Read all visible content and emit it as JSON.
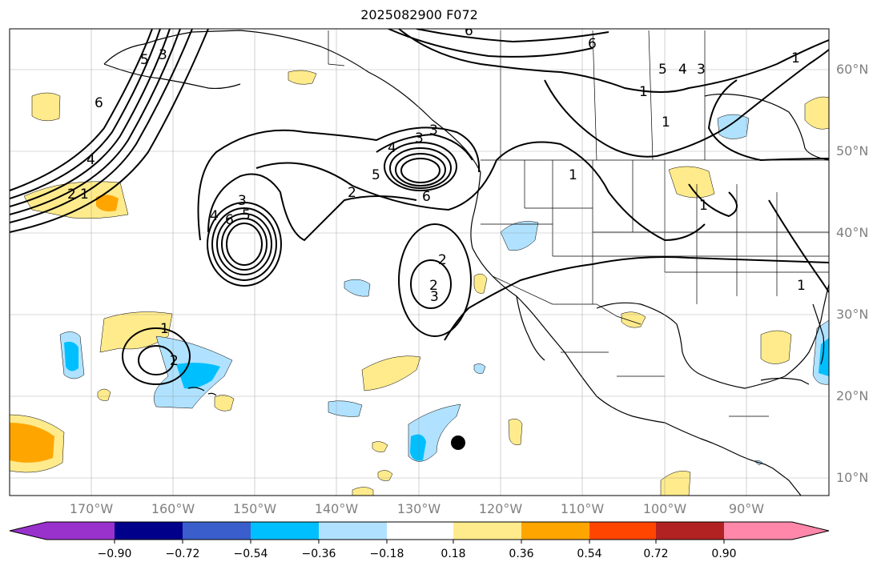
{
  "title": "2025082900 F072",
  "lon_labels": [
    "170°W",
    "160°W",
    "150°W",
    "140°W",
    "130°W",
    "120°W",
    "110°W",
    "100°W",
    "90°W"
  ],
  "lat_labels": [
    "60°N",
    "50°N",
    "40°N",
    "30°N",
    "20°N",
    "10°N"
  ],
  "colorbar": {
    "ticks": [
      "−0.90",
      "−0.72",
      "−0.54",
      "−0.36",
      "−0.18",
      "0.18",
      "0.36",
      "0.54",
      "0.72",
      "0.90"
    ],
    "colors": [
      "#9932cc",
      "#00008b",
      "#3a5fcd",
      "#00bfff",
      "#b0e2ff",
      "#ffffff",
      "#ffeb8c",
      "#ffa500",
      "#ff4500",
      "#b22222",
      "#ff88aa"
    ]
  },
  "contour_labels": [
    "6",
    "5",
    "4",
    "3",
    "2",
    "1",
    "6",
    "4",
    "2",
    "1",
    "3",
    "6",
    "5",
    "3",
    "2",
    "1",
    "4",
    "5",
    "3",
    "6",
    "2",
    "3",
    "1",
    "2",
    "1",
    "6",
    "5",
    "4",
    "3",
    "1",
    "1",
    "1"
  ],
  "fill_colors": {
    "yellow": "#ffeb8c",
    "orange": "#ffa500",
    "light_blue": "#b0e2ff",
    "blue": "#00bfff"
  },
  "marker_color": "#000000"
}
